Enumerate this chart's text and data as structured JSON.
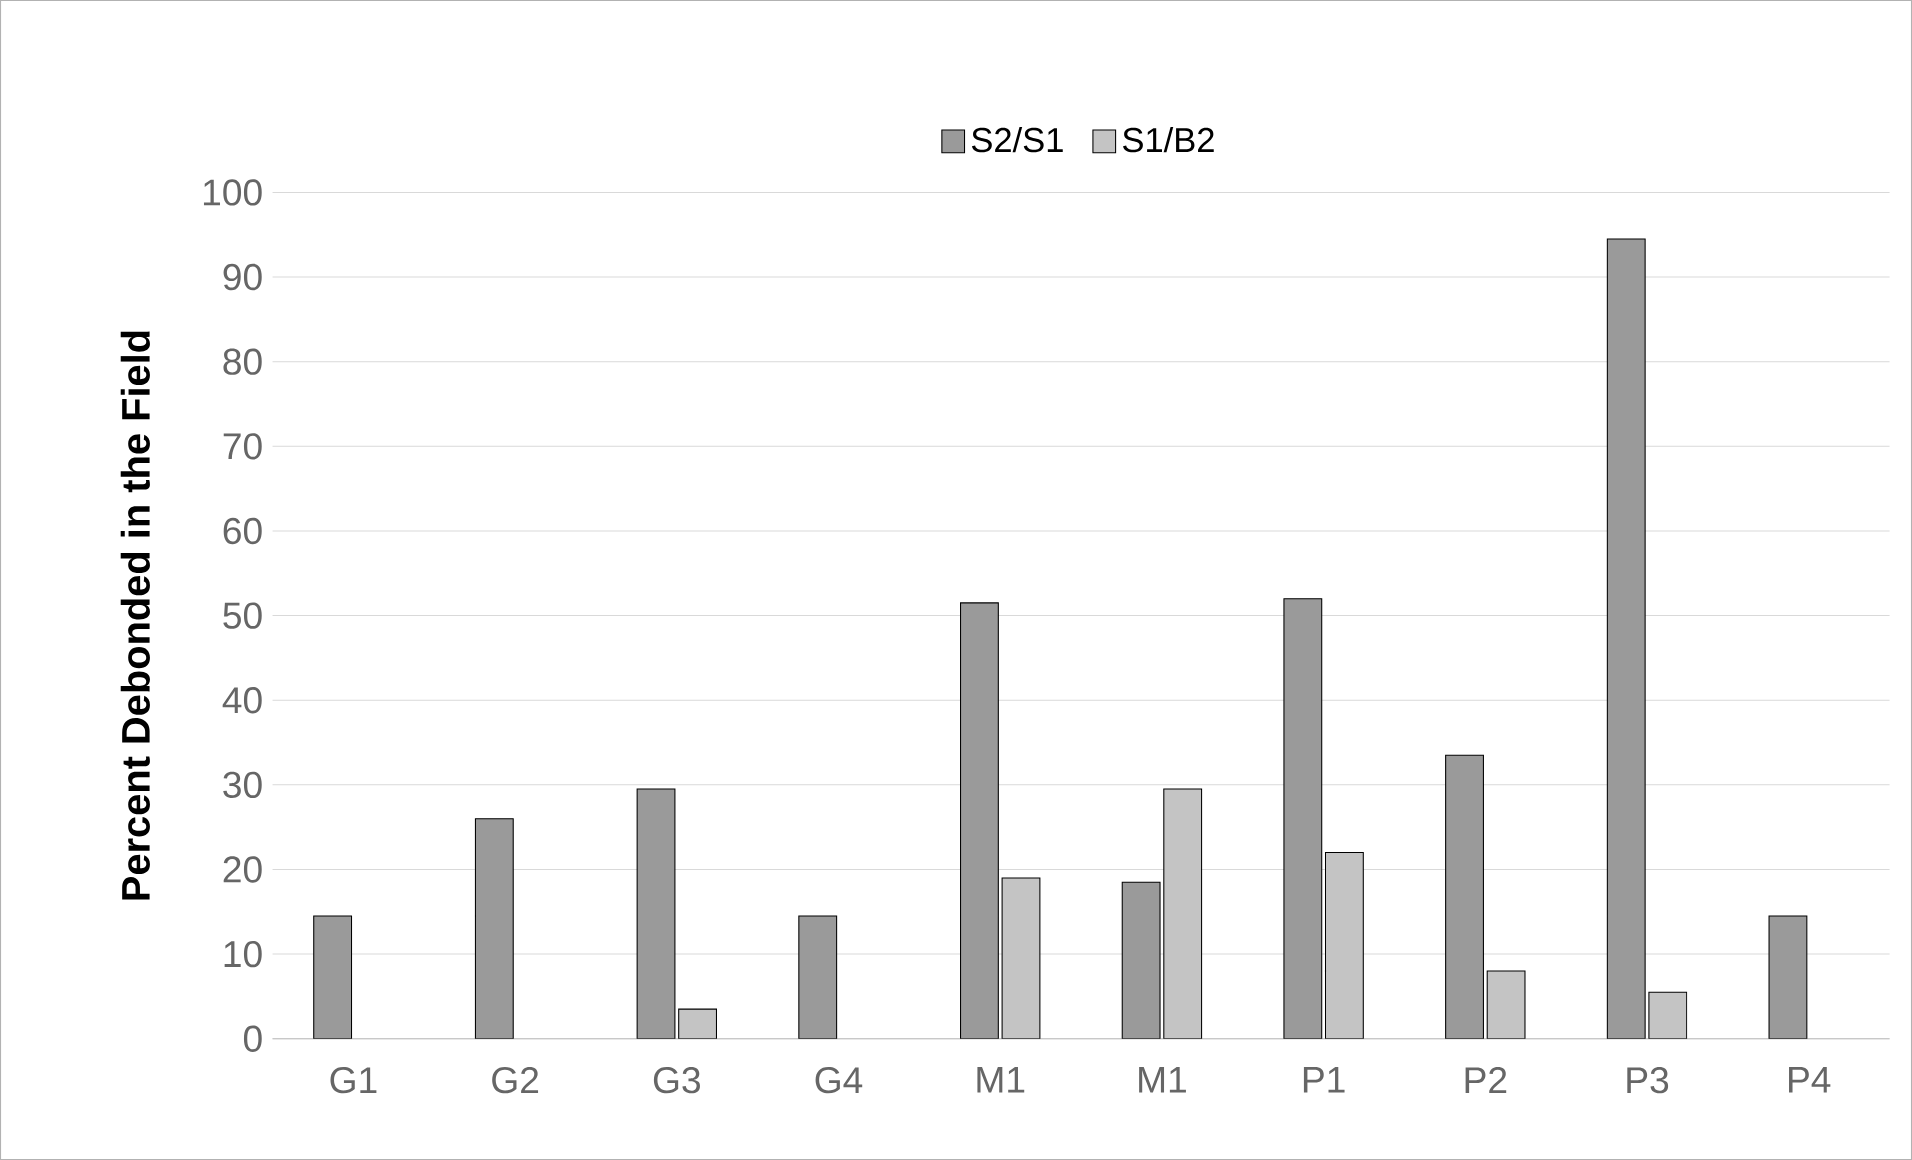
{
  "chart_data": {
    "type": "bar",
    "ylabel": "Percent Debonded in the Field",
    "categories": [
      "G1",
      "G2",
      "G3",
      "G4",
      "M1",
      "M1",
      "P1",
      "P2",
      "P3",
      "P4"
    ],
    "series": [
      {
        "name": "S2/S1",
        "color": "#9a9a9a",
        "values": [
          14.5,
          26,
          29.5,
          14.5,
          51.5,
          18.5,
          52,
          33.5,
          94.5,
          14.5
        ]
      },
      {
        "name": "S1/B2",
        "color": "#c4c4c4",
        "values": [
          null,
          null,
          3.5,
          null,
          19,
          29.5,
          22,
          8,
          5.5,
          null
        ]
      }
    ],
    "ylim": [
      0,
      100
    ],
    "yticks": [
      0,
      10,
      20,
      30,
      40,
      50,
      60,
      70,
      80,
      90,
      100
    ],
    "grid": "y",
    "legend": "top"
  }
}
